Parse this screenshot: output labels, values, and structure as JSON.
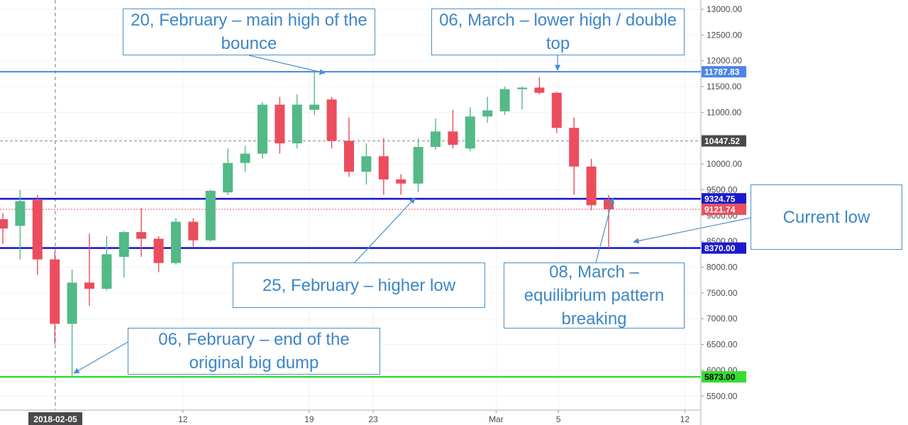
{
  "chart_data": {
    "type": "candlestick",
    "x_tick_labels": [
      "12",
      "19",
      "23",
      "Mar",
      "5",
      "12"
    ],
    "crosshair_date_label": "2018-02-05",
    "y_tick_labels": [
      "13000.00",
      "12500.00",
      "12000.00",
      "11500.00",
      "11000.00",
      "10500.00",
      "10000.00",
      "9500.00",
      "9000.00",
      "8500.00",
      "8000.00",
      "7500.00",
      "7000.00",
      "6500.00",
      "6000.00",
      "5500.00"
    ],
    "ylim": [
      5200,
      13150
    ],
    "candles": [
      {
        "o": 8930,
        "h": 9050,
        "l": 8450,
        "c": 8750
      },
      {
        "o": 8800,
        "h": 9500,
        "l": 8150,
        "c": 9280
      },
      {
        "o": 9300,
        "h": 9400,
        "l": 7850,
        "c": 8150
      },
      {
        "o": 8150,
        "h": 8300,
        "l": 6500,
        "c": 6900
      },
      {
        "o": 6900,
        "h": 7950,
        "l": 5900,
        "c": 7700
      },
      {
        "o": 7700,
        "h": 8650,
        "l": 7250,
        "c": 7580
      },
      {
        "o": 7580,
        "h": 8600,
        "l": 7550,
        "c": 8250
      },
      {
        "o": 8200,
        "h": 8700,
        "l": 7800,
        "c": 8680
      },
      {
        "o": 8680,
        "h": 9150,
        "l": 8200,
        "c": 8550
      },
      {
        "o": 8550,
        "h": 8600,
        "l": 7900,
        "c": 8080
      },
      {
        "o": 8080,
        "h": 8950,
        "l": 8050,
        "c": 8880
      },
      {
        "o": 8880,
        "h": 8950,
        "l": 8400,
        "c": 8520
      },
      {
        "o": 8520,
        "h": 9500,
        "l": 8500,
        "c": 9480
      },
      {
        "o": 9450,
        "h": 10300,
        "l": 9400,
        "c": 10020
      },
      {
        "o": 10020,
        "h": 10350,
        "l": 9850,
        "c": 10200
      },
      {
        "o": 10200,
        "h": 11200,
        "l": 10100,
        "c": 11150
      },
      {
        "o": 11150,
        "h": 11300,
        "l": 10200,
        "c": 10400
      },
      {
        "o": 10400,
        "h": 11350,
        "l": 10300,
        "c": 11150
      },
      {
        "o": 11050,
        "h": 11780,
        "l": 10950,
        "c": 11150
      },
      {
        "o": 11250,
        "h": 11300,
        "l": 10300,
        "c": 10450
      },
      {
        "o": 10450,
        "h": 10900,
        "l": 9750,
        "c": 9850
      },
      {
        "o": 9850,
        "h": 10400,
        "l": 9600,
        "c": 10150
      },
      {
        "o": 10150,
        "h": 10500,
        "l": 9400,
        "c": 9700
      },
      {
        "o": 9700,
        "h": 9800,
        "l": 9400,
        "c": 9620
      },
      {
        "o": 9620,
        "h": 10500,
        "l": 9450,
        "c": 10330
      },
      {
        "o": 10330,
        "h": 10880,
        "l": 10280,
        "c": 10630
      },
      {
        "o": 10630,
        "h": 11050,
        "l": 10300,
        "c": 10370
      },
      {
        "o": 10300,
        "h": 11100,
        "l": 10250,
        "c": 10920
      },
      {
        "o": 10920,
        "h": 11300,
        "l": 10800,
        "c": 11040
      },
      {
        "o": 11020,
        "h": 11500,
        "l": 10950,
        "c": 11450
      },
      {
        "o": 11450,
        "h": 11500,
        "l": 11060,
        "c": 11480
      },
      {
        "o": 11480,
        "h": 11680,
        "l": 11350,
        "c": 11380
      },
      {
        "o": 11380,
        "h": 11400,
        "l": 10600,
        "c": 10700
      },
      {
        "o": 10700,
        "h": 10900,
        "l": 9400,
        "c": 9950
      },
      {
        "o": 9950,
        "h": 10100,
        "l": 9100,
        "c": 9200
      },
      {
        "o": 9300,
        "h": 9400,
        "l": 8370,
        "c": 9121.74
      }
    ],
    "price_lines": [
      {
        "value": 11787.83,
        "label": "11787.83",
        "color": "#4a86e8",
        "style": "solid"
      },
      {
        "value": 10447.52,
        "label": "10447.52",
        "color": "#888888",
        "style": "dashed"
      },
      {
        "value": 9324.75,
        "label": "9324.75",
        "color": "#1a1acd",
        "style": "solid"
      },
      {
        "value": 9121.74,
        "label": "9121.74",
        "color": "#e8515f",
        "style": "dotted"
      },
      {
        "value": 8370.0,
        "label": "8370.00",
        "color": "#1a1acd",
        "style": "solid"
      },
      {
        "value": 5873.0,
        "label": "5873.00",
        "color": "#33dd33",
        "style": "solid"
      }
    ],
    "colors": {
      "up": "#53b987",
      "down": "#eb4d5c",
      "axis_text": "#4a4a4a",
      "grid": "#f0f3fa"
    }
  },
  "annotations": [
    {
      "id": "feb20",
      "text": "20, February – main high of the bounce"
    },
    {
      "id": "mar06",
      "text": "06, March – lower high / double top"
    },
    {
      "id": "current",
      "text": "Current low"
    },
    {
      "id": "feb25",
      "text": "25, February – higher low"
    },
    {
      "id": "mar08",
      "text": "08, March – equilibrium pattern breaking"
    },
    {
      "id": "feb06",
      "text": "06, February – end of the original big dump"
    }
  ]
}
